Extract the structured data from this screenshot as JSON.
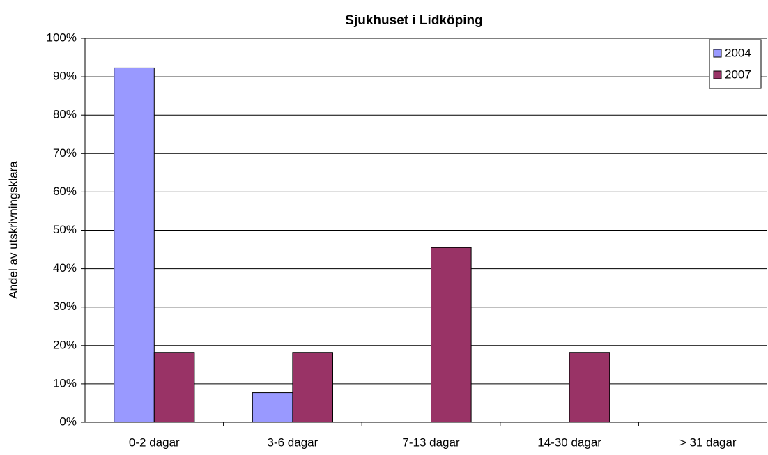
{
  "chart_data": {
    "type": "bar",
    "title": "Sjukhuset i Lidköping",
    "y_label": "Andel av utskrivningsklara",
    "categories": [
      "0-2 dagar",
      "3-6 dagar",
      "7-13 dagar",
      "14-30 dagar",
      "> 31 dagar"
    ],
    "series": [
      {
        "name": "2004",
        "color": "#9999ff",
        "values": [
          92.3,
          7.7,
          0,
          0,
          0
        ]
      },
      {
        "name": "2007",
        "color": "#993366",
        "values": [
          18.2,
          18.2,
          45.5,
          18.2,
          0
        ]
      }
    ],
    "ylim": [
      0,
      100
    ],
    "yticks": [
      {
        "value": 0,
        "label": "0%"
      },
      {
        "value": 10,
        "label": "10%"
      },
      {
        "value": 20,
        "label": "20%"
      },
      {
        "value": 30,
        "label": "30%"
      },
      {
        "value": 40,
        "label": "40%"
      },
      {
        "value": 50,
        "label": "50%"
      },
      {
        "value": 60,
        "label": "60%"
      },
      {
        "value": 70,
        "label": "70%"
      },
      {
        "value": 80,
        "label": "80%"
      },
      {
        "value": 90,
        "label": "90%"
      },
      {
        "value": 100,
        "label": "100%"
      }
    ],
    "grid": true,
    "legend": "top-right"
  }
}
